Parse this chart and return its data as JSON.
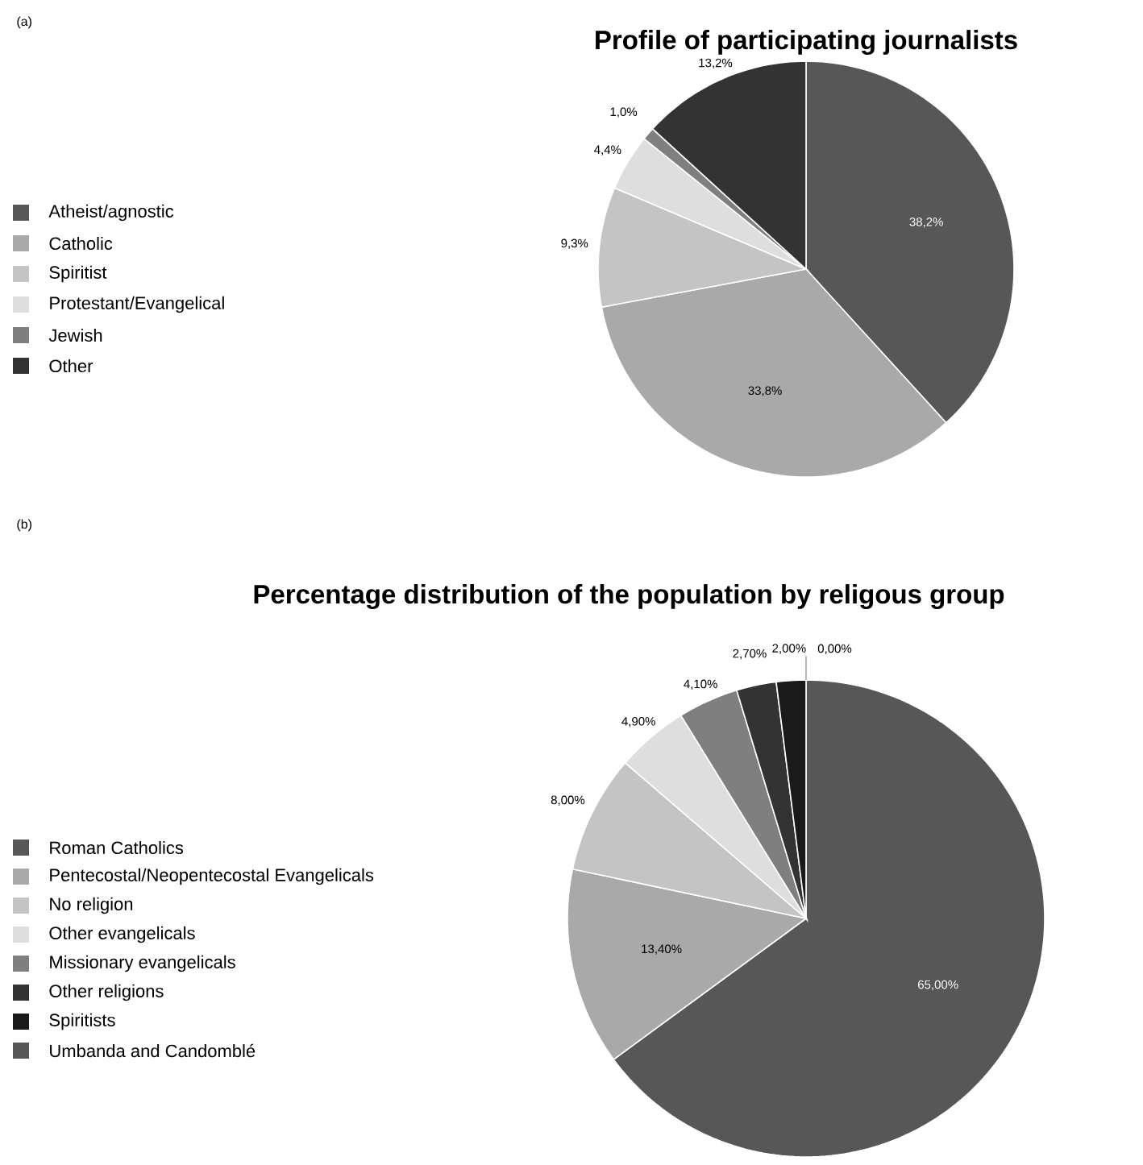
{
  "chart_data": [
    {
      "type": "pie",
      "title": "Profile of participating journalists",
      "annotations": [
        "(a)"
      ],
      "legend": "left",
      "categories": [
        "Atheist/agnostic",
        "Catholic",
        "Spiritist",
        "Protestant/Evangelical",
        "Jewish",
        "Other"
      ],
      "values": [
        38.2,
        33.8,
        9.3,
        4.4,
        1.0,
        13.2
      ],
      "value_labels": [
        "38,2%",
        "33,8%",
        "9,3%",
        "4,4%",
        "1,0%",
        "13,2%"
      ],
      "colors": [
        "#575757",
        "#a9a9a9",
        "#c4c4c4",
        "#dedede",
        "#7f7f7f",
        "#333333"
      ]
    },
    {
      "type": "pie",
      "title": "Percentage distribution of the population by religous group",
      "annotations": [
        "(b)"
      ],
      "legend": "left",
      "categories": [
        "Roman Catholics",
        "Pentecostal/Neopentecostal Evangelicals",
        "No religion",
        "Other evangelicals",
        "Missionary evangelicals",
        "Other religions",
        "Spiritists",
        "Umbanda and Candomblé"
      ],
      "values": [
        65.0,
        13.4,
        8.0,
        4.9,
        4.1,
        2.7,
        2.0,
        0.0
      ],
      "value_labels": [
        "65,00%",
        "13,40%",
        "8,00%",
        "4,90%",
        "4,10%",
        "2,70%",
        "2,00%",
        "0,00%"
      ],
      "colors": [
        "#575757",
        "#a9a9a9",
        "#c4c4c4",
        "#dedede",
        "#7f7f7f",
        "#333333",
        "#1a1a1a",
        "#575757"
      ]
    }
  ]
}
